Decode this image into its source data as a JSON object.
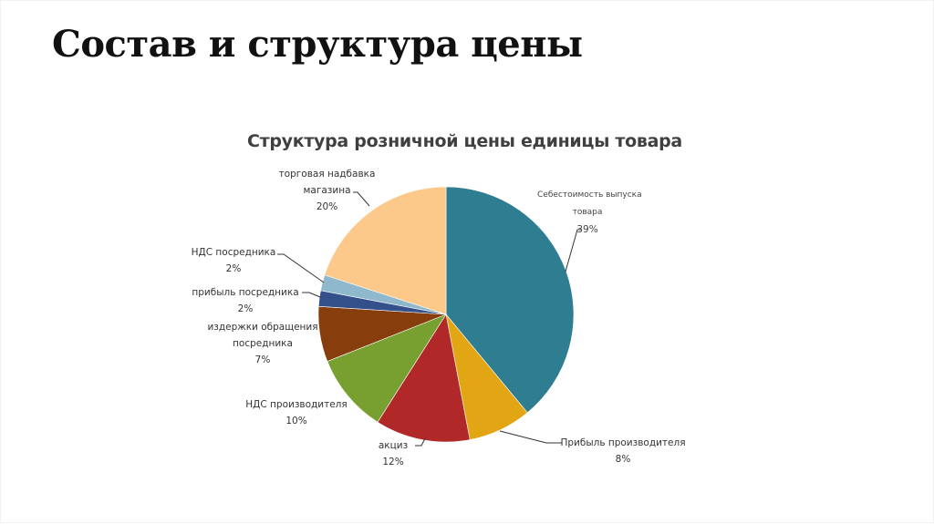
{
  "slide": {
    "title": "Состав и структура цены"
  },
  "chart_data": {
    "type": "pie",
    "title": "Структура розничной цены единицы товара",
    "start_angle": "12 o'clock",
    "direction": "clockwise",
    "legend": "none (leader-line labels)",
    "slices": [
      {
        "label": "Себестоимость выпуска товара",
        "value": 39,
        "color": "#2e7d90"
      },
      {
        "label": "Прибыль производителя",
        "value": 8,
        "color": "#e2a514"
      },
      {
        "label": "акциз",
        "value": 12,
        "color": "#b02828"
      },
      {
        "label": "НДС производителя",
        "value": 10,
        "color": "#77a030"
      },
      {
        "label": "издержки обращения посредника",
        "value": 7,
        "color": "#873e0c"
      },
      {
        "label": "прибыль посредника",
        "value": 2,
        "color": "#34508a"
      },
      {
        "label": "НДС посредника",
        "value": 2,
        "color": "#8fb8cc"
      },
      {
        "label": "торговая надбавка магазина",
        "value": 20,
        "color": "#fcc98a"
      }
    ]
  },
  "labels": {
    "sebest": {
      "line1": "Себестоимость выпуска",
      "line2": "товара",
      "pct": "39%"
    },
    "pribyl_proizv": {
      "line1": "Прибыль производителя",
      "pct": "8%"
    },
    "akciz": {
      "line1": "акциз",
      "pct": "12%"
    },
    "nds_proizv": {
      "line1": "НДС производителя",
      "pct": "10%"
    },
    "izderzhki": {
      "line1": "издержки обращения",
      "line2": "посредника",
      "pct": "7%"
    },
    "pribyl_posr": {
      "line1": "прибыль посредника",
      "pct": "2%"
    },
    "nds_posr": {
      "line1": "НДС посредника",
      "pct": "2%"
    },
    "nadbavka": {
      "line1": "торговая надбавка",
      "line2": "магазина",
      "pct": "20%"
    }
  }
}
